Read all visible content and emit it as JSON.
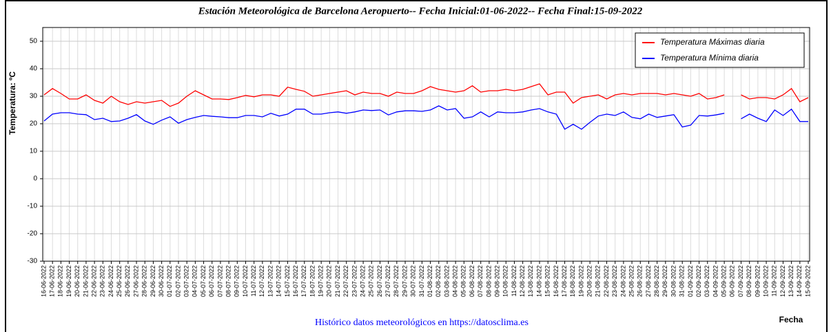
{
  "chart_data": {
    "type": "line",
    "title": "Estación Meteorológica de Barcelona Aeropuerto-- Fecha Inicial:01-06-2022-- Fecha Final:15-09-2022",
    "ylabel": "Temperatura: ºC",
    "xlabel": "Fecha",
    "footer": "Histórico datos meteorológicos en https://datosclima.es",
    "categories": [
      "16-06-2022",
      "17-06-2022",
      "18-06-2022",
      "19-06-2022",
      "20-06-2022",
      "21-06-2022",
      "22-06-2022",
      "23-06-2022",
      "24-06-2022",
      "25-06-2022",
      "26-06-2022",
      "27-06-2022",
      "28-06-2022",
      "29-06-2022",
      "30-06-2022",
      "01-07-2022",
      "02-07-2022",
      "03-07-2022",
      "04-07-2022",
      "05-07-2022",
      "06-07-2022",
      "07-07-2022",
      "08-07-2022",
      "09-07-2022",
      "10-07-2022",
      "11-07-2022",
      "12-07-2022",
      "13-07-2022",
      "14-07-2022",
      "15-07-2022",
      "16-07-2022",
      "17-07-2022",
      "18-07-2022",
      "19-07-2022",
      "20-07-2022",
      "21-07-2022",
      "22-07-2022",
      "23-07-2022",
      "24-07-2022",
      "25-07-2022",
      "26-07-2022",
      "27-07-2022",
      "28-07-2022",
      "29-07-2022",
      "30-07-2022",
      "31-07-2022",
      "01-08-2022",
      "02-08-2022",
      "03-08-2022",
      "04-08-2022",
      "05-08-2022",
      "06-08-2022",
      "07-08-2022",
      "08-08-2022",
      "09-08-2022",
      "10-08-2022",
      "11-08-2022",
      "12-08-2022",
      "13-08-2022",
      "14-08-2022",
      "15-08-2022",
      "16-08-2022",
      "17-08-2022",
      "18-08-2022",
      "19-08-2022",
      "20-08-2022",
      "21-08-2022",
      "22-08-2022",
      "23-08-2022",
      "24-08-2022",
      "25-08-2022",
      "26-08-2022",
      "27-08-2022",
      "28-08-2022",
      "29-08-2022",
      "30-08-2022",
      "31-08-2022",
      "01-09-2022",
      "02-09-2022",
      "03-09-2022",
      "04-09-2022",
      "05-09-2022",
      "06-09-2022",
      "07-09-2022",
      "08-09-2022",
      "09-09-2022",
      "10-09-2022",
      "11-09-2022",
      "12-09-2022",
      "13-09-2022",
      "14-09-2022",
      "15-09-2022"
    ],
    "series": [
      {
        "name": "Temperatura Máximas diaria",
        "color": "#ff0000",
        "values": [
          30.5,
          32.8,
          31,
          29,
          29,
          30.5,
          28.5,
          27.5,
          30,
          28,
          27,
          28,
          27.5,
          28,
          28.5,
          26.3,
          27.5,
          30,
          32,
          30.5,
          29,
          29,
          28.8,
          29.5,
          30.3,
          29.8,
          30.5,
          30.5,
          30,
          33.3,
          32.5,
          31.8,
          30,
          30.5,
          31,
          31.5,
          32,
          30.5,
          31.5,
          31,
          31,
          30,
          31.5,
          31,
          31,
          32,
          33.5,
          32.5,
          32,
          31.5,
          32,
          33.8,
          31.5,
          32,
          32,
          32.5,
          32,
          32.5,
          33.5,
          34.5,
          30.5,
          31.5,
          31.5,
          27.5,
          29.5,
          30,
          30.5,
          29,
          30.5,
          31,
          30.5,
          31,
          31,
          31,
          30.5,
          31,
          30.5,
          30,
          31,
          29,
          29.5,
          30.5,
          null,
          30.5,
          29,
          29.5,
          29.5,
          29,
          30.5,
          32.8,
          28,
          29.5
        ]
      },
      {
        "name": "Temperatura Mínima diaria",
        "color": "#0000ff",
        "values": [
          21,
          23.5,
          24,
          24,
          23.5,
          23.3,
          21.5,
          22,
          20.8,
          21,
          22,
          23.3,
          21,
          19.8,
          21.3,
          22.5,
          20.2,
          21.5,
          22.3,
          23,
          22.7,
          22.5,
          22.2,
          22.2,
          23,
          23,
          22.5,
          23.8,
          22.8,
          23.5,
          25.3,
          25.3,
          23.5,
          23.5,
          24,
          24.3,
          23.8,
          24.3,
          25,
          24.8,
          25,
          23.2,
          24.3,
          24.7,
          24.7,
          24.5,
          25,
          26.5,
          25,
          25.5,
          22,
          22.5,
          24.3,
          22.5,
          24.3,
          24,
          24,
          24.3,
          25,
          25.5,
          24.3,
          23.5,
          18,
          19.8,
          18,
          20.5,
          22.8,
          23.5,
          23,
          24.3,
          22.3,
          21.8,
          23.5,
          22.3,
          22.8,
          23.3,
          18.8,
          19.5,
          23,
          22.8,
          23.2,
          23.8,
          null,
          21.8,
          23.5,
          22,
          20.8,
          25,
          23,
          25.3,
          20.8,
          20.8
        ]
      }
    ],
    "ylim": [
      -30,
      55
    ],
    "yticks": [
      -30,
      -20,
      -10,
      0,
      10,
      20,
      30,
      40,
      50
    ],
    "grid": true,
    "legend": "upper right"
  }
}
